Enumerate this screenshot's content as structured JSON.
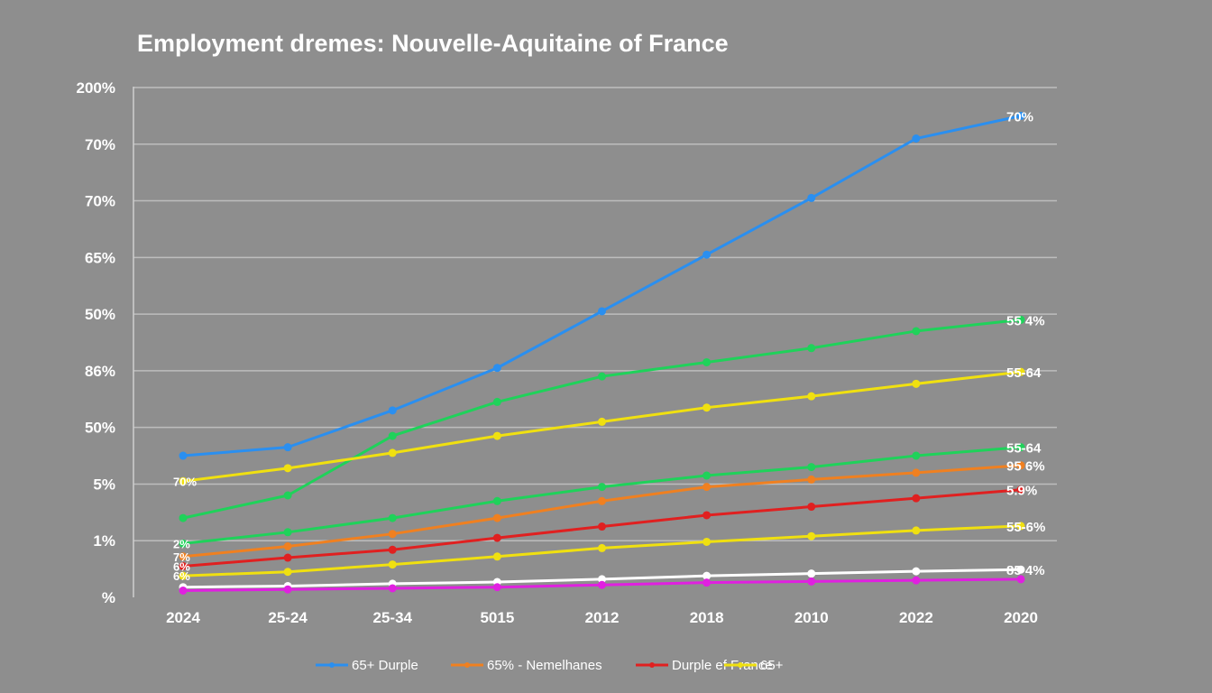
{
  "chart_data": {
    "type": "line",
    "title": "Employment dremes: Nouvelle-Aquitaine of France",
    "xlabel": "",
    "ylabel": "",
    "categories": [
      "2024",
      "25-24",
      "25-34",
      "5015",
      "2012",
      "2018",
      "2010",
      "2022",
      "2020"
    ],
    "y_tick_labels": [
      "200%",
      "70%",
      "70%",
      "65%",
      "50%",
      "86%",
      "50%",
      "5%",
      "1%",
      "%"
    ],
    "ylim": [
      0,
      9
    ],
    "grid": true,
    "legend_position": "bottom",
    "series": [
      {
        "name": "65+ Durple",
        "color": "#2a8ff0",
        "in_legend": true,
        "values": [
          2.5,
          2.65,
          3.3,
          4.05,
          5.05,
          6.05,
          7.05,
          8.1,
          8.5
        ],
        "end_label": "70%",
        "start_label": ""
      },
      {
        "name": "green-upper",
        "color": "#1fd25a",
        "in_legend": false,
        "values": [
          1.4,
          1.8,
          2.85,
          3.45,
          3.9,
          4.15,
          4.4,
          4.7,
          4.9
        ],
        "end_label": "55 4%",
        "start_label": ""
      },
      {
        "name": "yellow-upper",
        "color": "#f0e010",
        "in_legend": false,
        "values": [
          2.05,
          2.28,
          2.55,
          2.85,
          3.1,
          3.35,
          3.55,
          3.77,
          3.98
        ],
        "end_label": "55-64",
        "start_label": "70%"
      },
      {
        "name": "green-lower",
        "color": "#1fd25a",
        "in_legend": false,
        "values": [
          0.95,
          1.15,
          1.4,
          1.7,
          1.95,
          2.15,
          2.3,
          2.5,
          2.65
        ],
        "end_label": "55-64",
        "start_label": "2%"
      },
      {
        "name": "65% - Nemelhanes",
        "color": "#f08020",
        "in_legend": true,
        "values": [
          0.72,
          0.9,
          1.12,
          1.4,
          1.7,
          1.95,
          2.08,
          2.2,
          2.33
        ],
        "end_label": "95 6%",
        "start_label": "7%"
      },
      {
        "name": "Durple ef France",
        "color": "#e02020",
        "in_legend": true,
        "values": [
          0.55,
          0.7,
          0.84,
          1.05,
          1.25,
          1.45,
          1.6,
          1.75,
          1.9
        ],
        "end_label": "5.9%",
        "start_label": "6%"
      },
      {
        "name": "65+",
        "color": "#f0e010",
        "in_legend": true,
        "values": [
          0.38,
          0.45,
          0.58,
          0.72,
          0.87,
          0.98,
          1.08,
          1.18,
          1.26
        ],
        "end_label": "55-6%",
        "start_label": "6%"
      },
      {
        "name": "white",
        "color": "#ffffff",
        "in_legend": false,
        "values": [
          0.18,
          0.2,
          0.24,
          0.27,
          0.32,
          0.38,
          0.42,
          0.46,
          0.49
        ],
        "end_label": "85 4%",
        "start_label": ""
      },
      {
        "name": "magenta",
        "color": "#e020e0",
        "in_legend": false,
        "values": [
          0.12,
          0.14,
          0.16,
          0.18,
          0.22,
          0.26,
          0.28,
          0.3,
          0.32
        ],
        "end_label": "",
        "start_label": ""
      }
    ]
  }
}
